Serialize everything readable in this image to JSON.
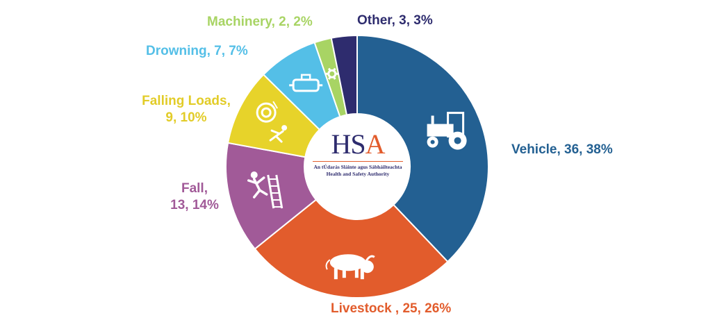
{
  "chart_data": {
    "type": "pie",
    "donut": true,
    "categories": [
      "Vehicle",
      "Livestock ",
      "Fall",
      "Falling Loads",
      "Drowning",
      "Machinery",
      "Other"
    ],
    "values": [
      36,
      25,
      13,
      9,
      7,
      2,
      3
    ],
    "percents": [
      38,
      26,
      14,
      10,
      7,
      2,
      3
    ],
    "colors": [
      "#236092",
      "#E25C2C",
      "#A15A98",
      "#E7D32A",
      "#54BFE7",
      "#A8D464",
      "#2E2C6E"
    ],
    "icons": [
      "tractor-icon",
      "bull-icon",
      "ladder-fall-icon",
      "falling-load-icon",
      "tank-icon",
      "gear-icon",
      ""
    ],
    "labels": [
      [
        "Vehicle, 36, 38%"
      ],
      [
        "Livestock , 25, 26%"
      ],
      [
        "Fall,",
        "13, 14%"
      ],
      [
        "Falling Loads,",
        "9, 10%"
      ],
      [
        "Drowning, 7, 7%"
      ],
      [
        "Machinery, 2, 2%"
      ],
      [
        "Other, 3, 3%"
      ]
    ]
  },
  "center_logo": {
    "text": "HSA",
    "line1": "An tÚdarás Sláinte agus Sábháilteachta",
    "line2": "Health and Safety Authority",
    "colors": {
      "hs": "#2E2C6E",
      "a": "#E25C2C"
    }
  }
}
